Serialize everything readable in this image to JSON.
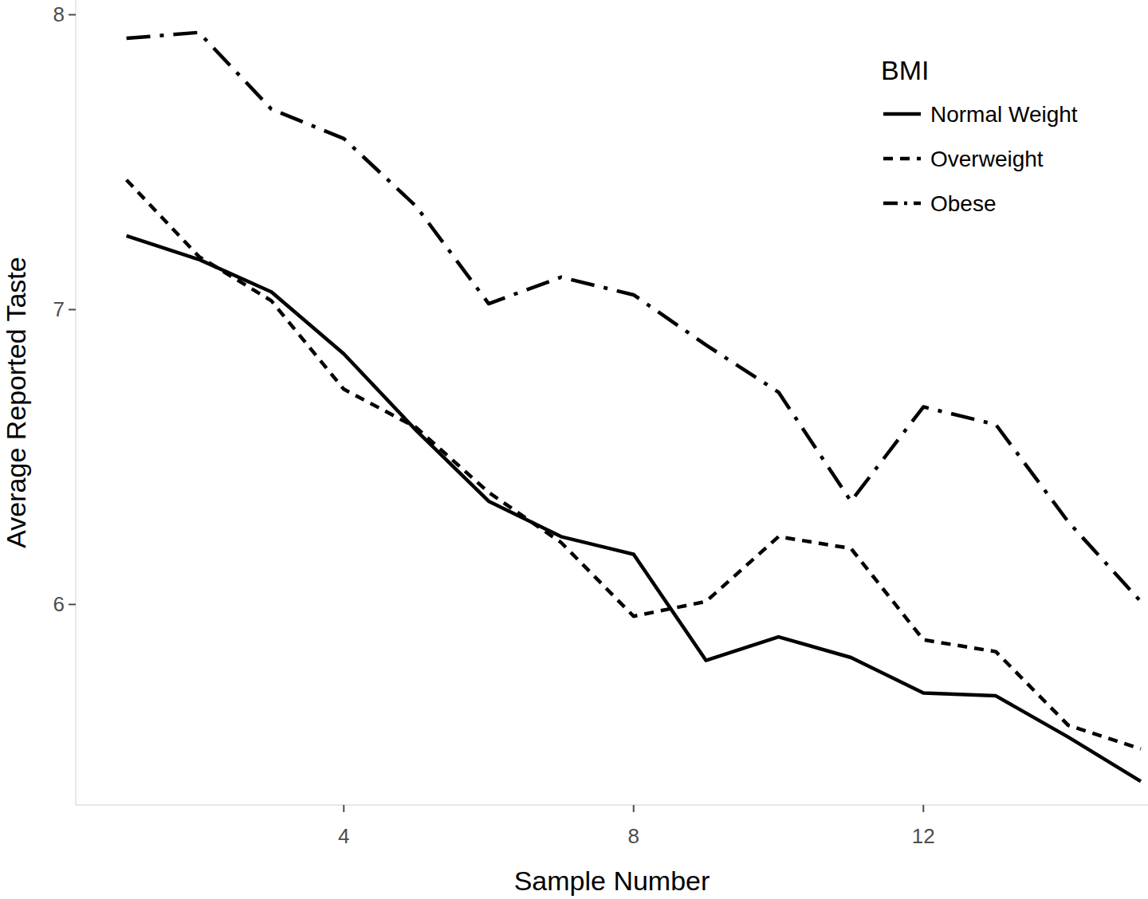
{
  "chart_data": {
    "type": "line",
    "x_label": "Sample Number",
    "y_label": "Average Reported Taste",
    "legend_title": "BMI",
    "legend": "top-right",
    "grid": false,
    "x": [
      1,
      2,
      3,
      4,
      5,
      6,
      7,
      8,
      9,
      10,
      11,
      12,
      13,
      14,
      15
    ],
    "xlim": [
      0.3,
      15.1
    ],
    "xticks": [
      4,
      8,
      12
    ],
    "ylim": [
      5.32,
      8.05
    ],
    "yticks": [
      6,
      7,
      8
    ],
    "series": [
      {
        "name": "Normal Weight",
        "color": "#000000",
        "line_style": "solid",
        "values": [
          7.25,
          7.17,
          7.06,
          6.85,
          6.59,
          6.35,
          6.23,
          6.17,
          5.81,
          5.89,
          5.82,
          5.7,
          5.69,
          5.55,
          5.4
        ]
      },
      {
        "name": "Overweight",
        "color": "#000000",
        "line_style": "dashed",
        "values": [
          7.44,
          7.18,
          7.03,
          6.73,
          6.6,
          6.38,
          6.21,
          5.96,
          6.01,
          6.23,
          6.19,
          5.88,
          5.84,
          5.59,
          5.51
        ]
      },
      {
        "name": "Obese",
        "color": "#000000",
        "line_style": "dotdash",
        "values": [
          7.92,
          7.94,
          7.68,
          7.58,
          7.35,
          7.02,
          7.11,
          7.05,
          6.88,
          6.72,
          6.35,
          6.67,
          6.61,
          6.28,
          6.01
        ]
      }
    ]
  }
}
